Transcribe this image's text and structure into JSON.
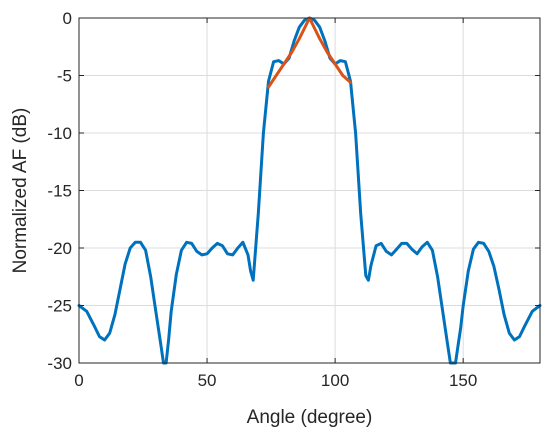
{
  "chart_data": {
    "type": "line",
    "title": "",
    "xlabel": "Angle (degree)",
    "ylabel": "Normalized AF (dB)",
    "xlim": [
      0,
      180
    ],
    "ylim": [
      -30,
      0
    ],
    "xticks": [
      0,
      50,
      100,
      150
    ],
    "yticks": [
      0,
      -5,
      -10,
      -15,
      -20,
      -25,
      -30
    ],
    "grid": true,
    "legend": "none",
    "series": [
      {
        "color": "#0072bd",
        "x": [
          0,
          3,
          6,
          8,
          10,
          12,
          14,
          16,
          18,
          20,
          22,
          24,
          26,
          28,
          30,
          31,
          32,
          33,
          34,
          35,
          36,
          38,
          40,
          42,
          44,
          46,
          48,
          50,
          52,
          54,
          56,
          58,
          60,
          62,
          64,
          66,
          67,
          68,
          70,
          72,
          74,
          76,
          78,
          80,
          82,
          84,
          86,
          88,
          90,
          92,
          94,
          96,
          98,
          100,
          102,
          104,
          106,
          108,
          110,
          112,
          113,
          114,
          116,
          118,
          120,
          122,
          124,
          126,
          128,
          130,
          132,
          134,
          136,
          138,
          140,
          142,
          144,
          145,
          146,
          147,
          148,
          149,
          150,
          152,
          154,
          156,
          158,
          160,
          162,
          164,
          166,
          168,
          170,
          172,
          174,
          177,
          180
        ],
        "y": [
          -25,
          -25.5,
          -26.8,
          -27.7,
          -28,
          -27.4,
          -25.8,
          -23.6,
          -21.4,
          -20,
          -19.5,
          -19.5,
          -20.2,
          -22.5,
          -25.5,
          -27,
          -28.5,
          -30,
          -30,
          -28,
          -25.5,
          -22.3,
          -20.2,
          -19.5,
          -19.6,
          -20.3,
          -20.6,
          -20.5,
          -20,
          -19.6,
          -19.8,
          -20.5,
          -20.6,
          -20,
          -19.5,
          -20.6,
          -22,
          -22.8,
          -17,
          -10,
          -5.5,
          -3.8,
          -3.7,
          -4,
          -3.5,
          -2,
          -0.8,
          -0.2,
          0,
          -0.2,
          -0.8,
          -2,
          -3.5,
          -4,
          -3.7,
          -3.8,
          -5.5,
          -10,
          -17,
          -22.4,
          -22.8,
          -21.5,
          -19.8,
          -19.6,
          -20.3,
          -20.6,
          -20.1,
          -19.6,
          -19.6,
          -20.1,
          -20.5,
          -19.9,
          -19.5,
          -20.2,
          -22.5,
          -25.5,
          -28.5,
          -30,
          -30,
          -30,
          -28.5,
          -27,
          -25,
          -22,
          -20.1,
          -19.5,
          -19.6,
          -20.3,
          -21.6,
          -23.6,
          -25.8,
          -27.4,
          -28,
          -27.7,
          -26.8,
          -25.5,
          -25
        ]
      },
      {
        "color": "#d95319",
        "x": [
          74,
          77,
          80,
          83,
          86,
          88,
          90,
          92,
          94,
          97,
          100,
          103,
          106
        ],
        "y": [
          -6,
          -5,
          -4,
          -3,
          -1.8,
          -0.9,
          0,
          -0.9,
          -1.8,
          -3,
          -4,
          -5,
          -5.6
        ]
      }
    ]
  }
}
